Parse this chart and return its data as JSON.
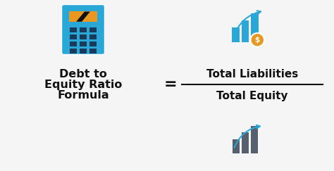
{
  "bg_color": "#f5f5f5",
  "title_text_line1": "Debt to",
  "title_text_line2": "Equity Ratio",
  "title_text_line3": "Formula",
  "equals_sign": "=",
  "numerator": "Total Liabilities",
  "denominator": "Total Equity",
  "text_color_bold": "#111111",
  "bar_color_blue": "#29a8d8",
  "bar_color_gray": "#565f6d",
  "arrow_color_blue": "#29a8d8",
  "dollar_color": "#e89820",
  "calc_body_color": "#29a8d8",
  "calc_screen_bg": "#e89820",
  "calc_screen_stripe": "#111111",
  "calc_button_color": "#1a3a5c",
  "fraction_line_color": "#111111",
  "font_size_title": 11.5,
  "font_size_formula": 11,
  "font_size_equals": 16
}
